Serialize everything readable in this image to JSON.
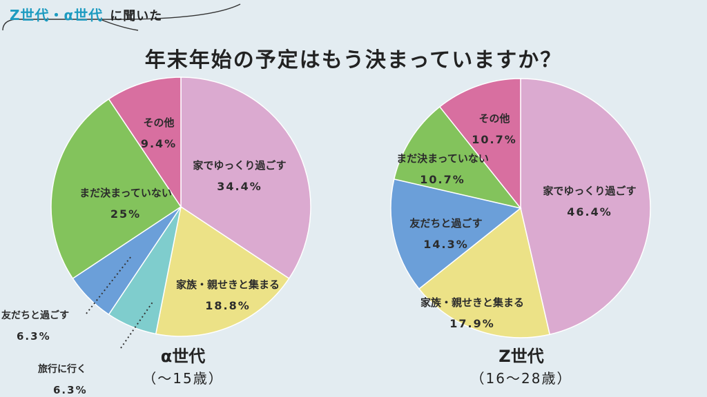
{
  "header": {
    "tag_accent": "Z世代・α世代",
    "tag_suffix": "に聞いた",
    "title": "年末年始の予定はもう決まっていますか？"
  },
  "chart_data": [
    {
      "type": "pie",
      "title": "α世代",
      "subtitle": "（〜15歳）",
      "slices": [
        {
          "label": "家でゆっくり過ごす",
          "value": 34.4,
          "display": "34.4%",
          "color": "#dbaad0"
        },
        {
          "label": "家族・親せきと集まる",
          "value": 18.8,
          "display": "18.8%",
          "color": "#ece287"
        },
        {
          "label": "旅行に行く",
          "value": 6.3,
          "display": "6.3%",
          "color": "#7fcdcd"
        },
        {
          "label": "友だちと過ごす",
          "value": 6.3,
          "display": "6.3%",
          "color": "#6b9fd9"
        },
        {
          "label": "まだ決まっていない",
          "value": 25,
          "display": "25%",
          "color": "#83c35c"
        },
        {
          "label": "その他",
          "value": 9.4,
          "display": "9.4%",
          "color": "#d86fa0"
        }
      ]
    },
    {
      "type": "pie",
      "title": "Z世代",
      "subtitle": "（16〜28歳）",
      "slices": [
        {
          "label": "家でゆっくり過ごす",
          "value": 46.4,
          "display": "46.4%",
          "color": "#dbaad0"
        },
        {
          "label": "家族・親せきと集まる",
          "value": 17.9,
          "display": "17.9%",
          "color": "#ece287"
        },
        {
          "label": "友だちと過ごす",
          "value": 14.3,
          "display": "14.3%",
          "color": "#6b9fd9"
        },
        {
          "label": "まだ決まっていない",
          "value": 10.7,
          "display": "10.7%",
          "color": "#83c35c"
        },
        {
          "label": "その他",
          "value": 10.7,
          "display": "10.7%",
          "color": "#d86fa0"
        }
      ]
    }
  ]
}
